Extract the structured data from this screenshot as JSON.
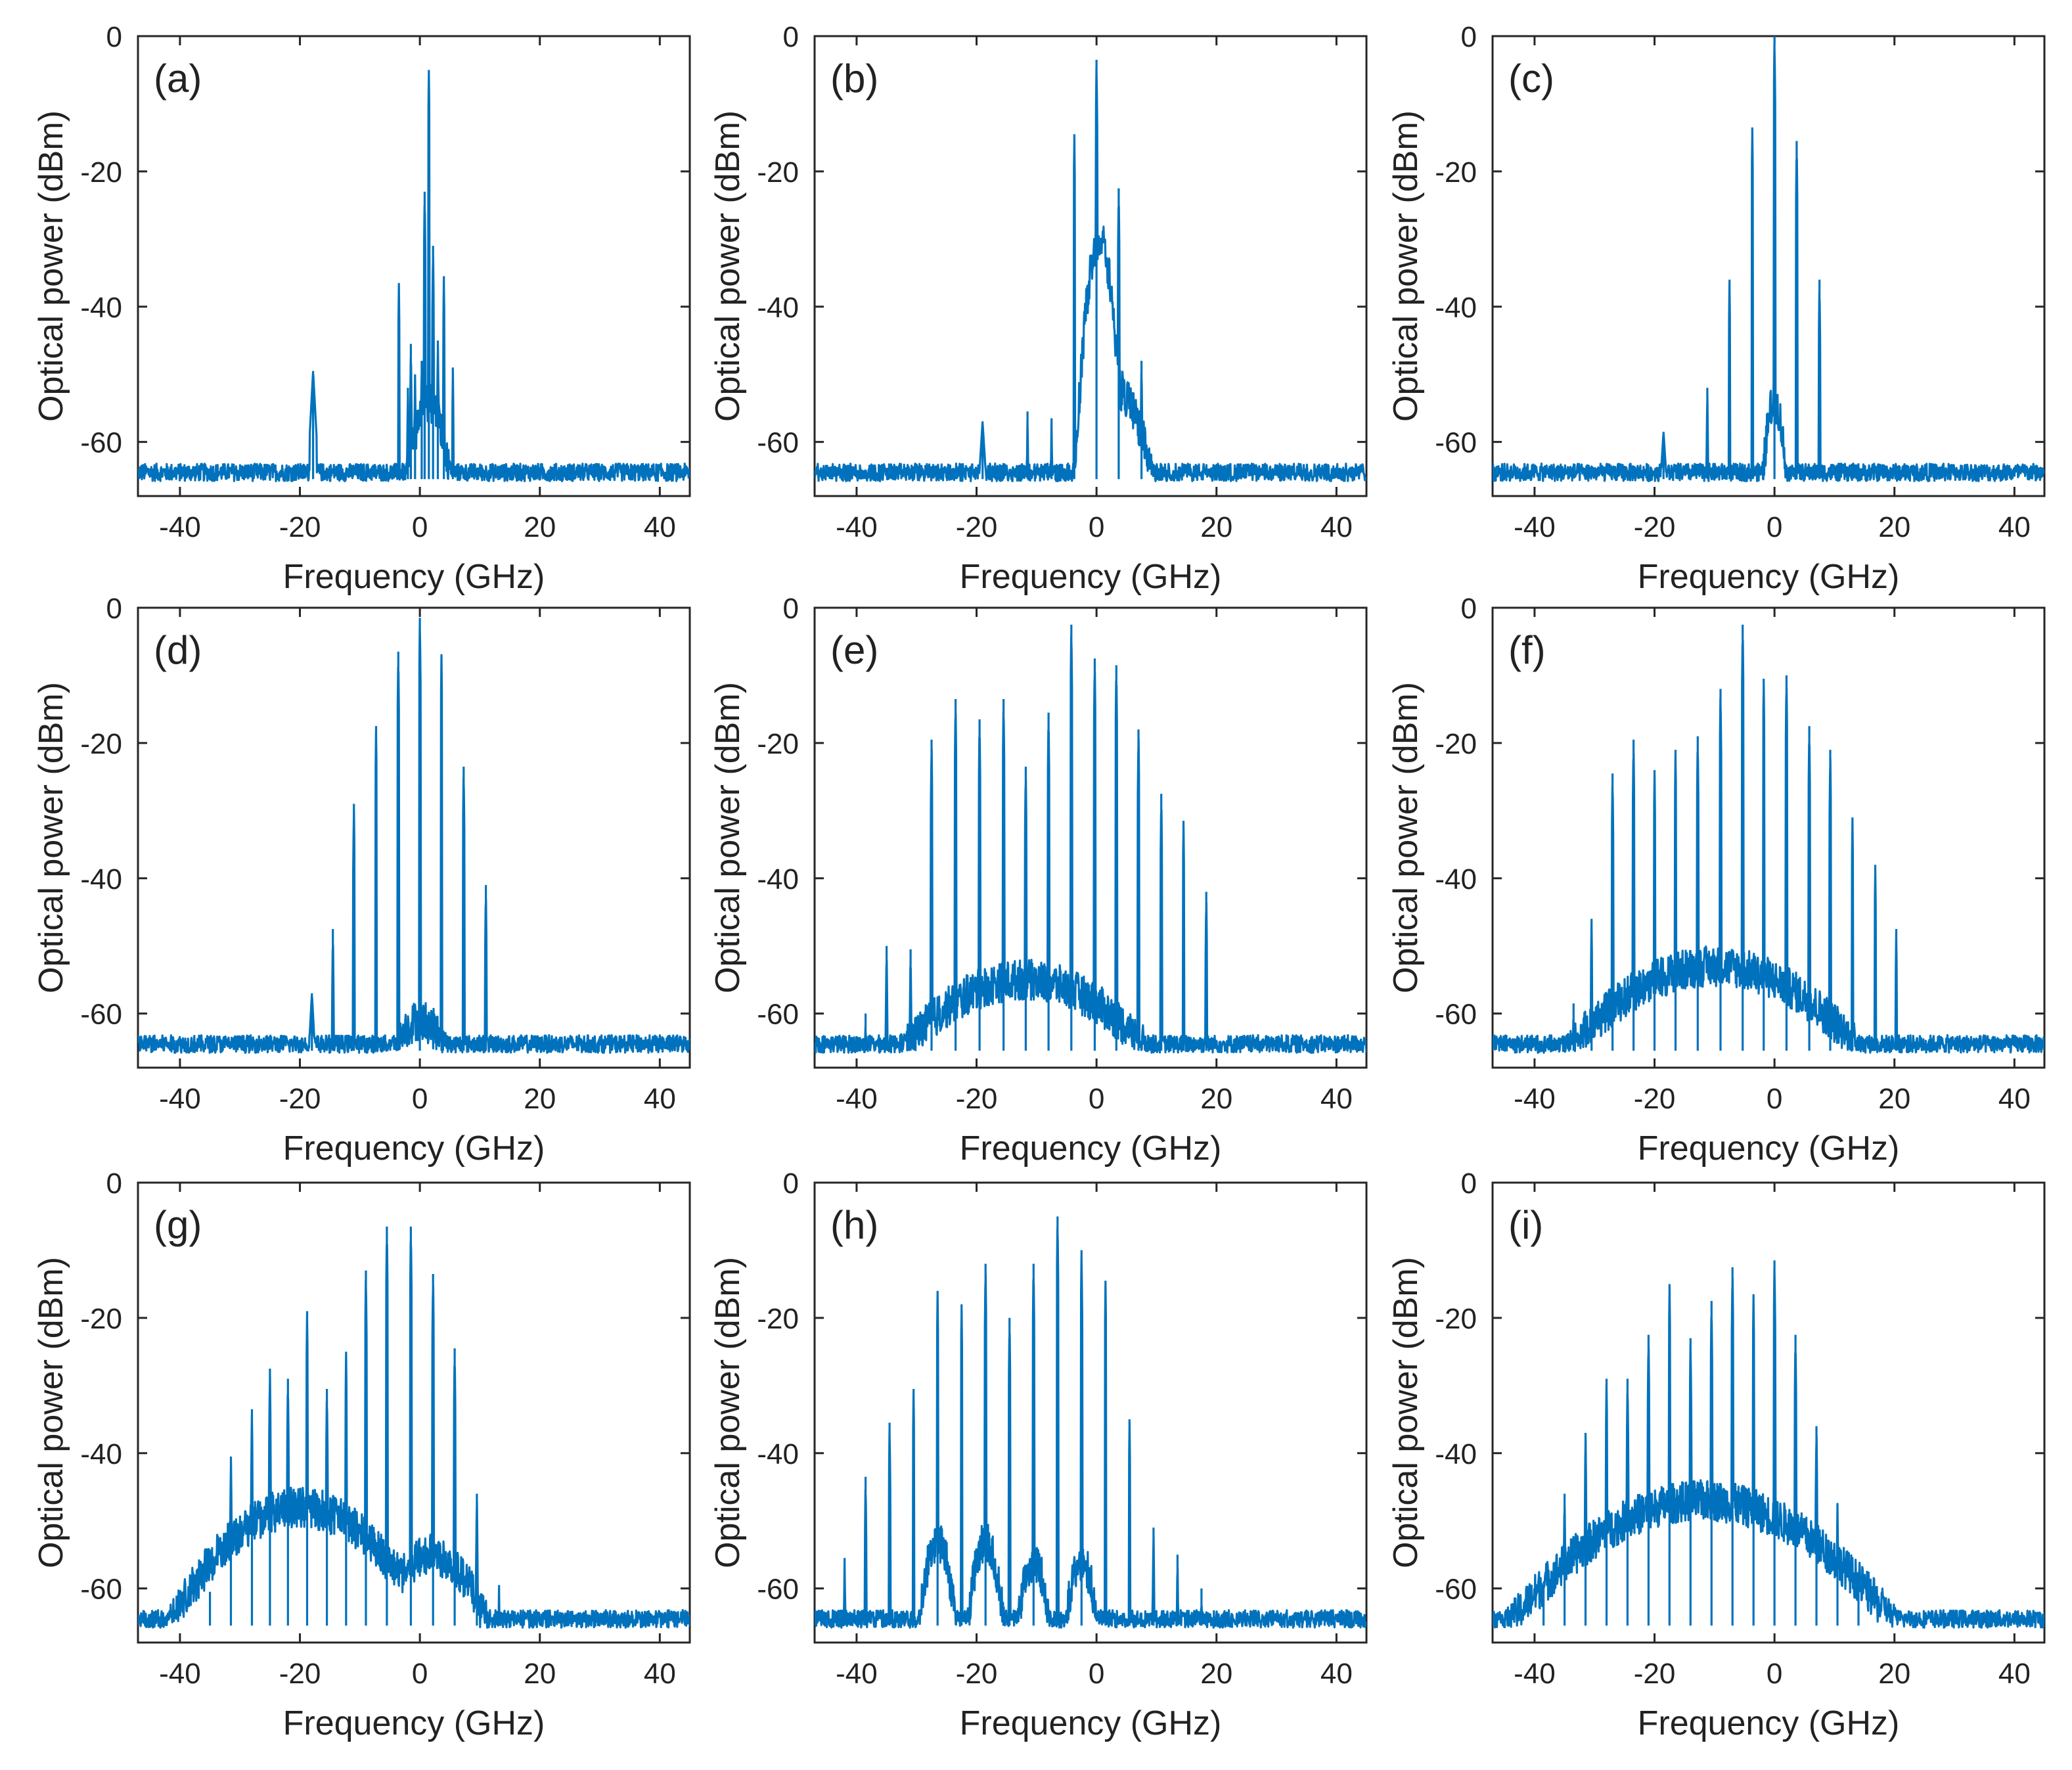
{
  "figure": {
    "line_color": "#0072BD",
    "axis_color": "#262626",
    "background": "#ffffff"
  },
  "chart_data": [
    {
      "type": "line",
      "panel": "(a)",
      "xlabel": "Frequency (GHz)",
      "ylabel": "Optical power (dBm)",
      "xlim": [
        -47,
        45
      ],
      "ylim": [
        -68,
        0
      ],
      "xticks": [
        "-40",
        "-20",
        "0",
        "20",
        "40"
      ],
      "yticks": [
        "0",
        "-20",
        "-40",
        "-60"
      ],
      "noise_floor": -64.5,
      "peaks": [
        {
          "x": -17.8,
          "y": -49.5,
          "w": 0.6
        },
        {
          "x": -3.5,
          "y": -36.5
        },
        {
          "x": -2.0,
          "y": -52.0
        },
        {
          "x": -1.5,
          "y": -45.5
        },
        {
          "x": -0.8,
          "y": -50.0
        },
        {
          "x": 0.3,
          "y": -48.0
        },
        {
          "x": 0.8,
          "y": -23.0
        },
        {
          "x": 1.5,
          "y": -5.0
        },
        {
          "x": 2.2,
          "y": -31.0
        },
        {
          "x": 3.0,
          "y": -45.0
        },
        {
          "x": 4.0,
          "y": -35.5
        },
        {
          "x": 5.5,
          "y": -49.0
        }
      ],
      "humps": [
        {
          "x": 1.5,
          "y": -54,
          "w": 1.8
        }
      ]
    },
    {
      "type": "line",
      "panel": "(b)",
      "xlabel": "Frequency (GHz)",
      "ylabel": "Optical power (dBm)",
      "xlim": [
        -47,
        45
      ],
      "ylim": [
        -68,
        0
      ],
      "xticks": [
        "-40",
        "-20",
        "0",
        "20",
        "40"
      ],
      "yticks": [
        "0",
        "-20",
        "-40",
        "-60"
      ],
      "noise_floor": -64.5,
      "peaks": [
        {
          "x": -19.0,
          "y": -57.0,
          "w": 0.7
        },
        {
          "x": -11.5,
          "y": -55.5
        },
        {
          "x": -7.5,
          "y": -56.5
        },
        {
          "x": -3.7,
          "y": -14.5
        },
        {
          "x": 0.0,
          "y": -3.5
        },
        {
          "x": 3.7,
          "y": -22.5
        },
        {
          "x": 7.5,
          "y": -48.0
        }
      ],
      "humps": [
        {
          "x": 0.5,
          "y": -30,
          "w": 1.2
        },
        {
          "x": 3.0,
          "y": -52,
          "w": 3.0
        }
      ]
    },
    {
      "type": "line",
      "panel": "(c)",
      "xlabel": "Frequency (GHz)",
      "ylabel": "Optical power (dBm)",
      "xlim": [
        -47,
        45
      ],
      "ylim": [
        -68,
        0
      ],
      "xticks": [
        "-40",
        "-20",
        "0",
        "20",
        "40"
      ],
      "yticks": [
        "0",
        "-20",
        "-40",
        "-60"
      ],
      "noise_floor": -64.5,
      "peaks": [
        {
          "x": -18.5,
          "y": -58.5,
          "w": 0.7
        },
        {
          "x": -11.2,
          "y": -52.0
        },
        {
          "x": -7.5,
          "y": -36.0
        },
        {
          "x": -3.7,
          "y": -13.5
        },
        {
          "x": 0.0,
          "y": 0.0
        },
        {
          "x": 3.7,
          "y": -15.5
        },
        {
          "x": 7.5,
          "y": -36.0
        }
      ],
      "humps": [
        {
          "x": 0.0,
          "y": -54,
          "w": 1.0
        }
      ]
    },
    {
      "type": "line",
      "panel": "(d)",
      "xlabel": "Frequency (GHz)",
      "ylabel": "Optical power (dBm)",
      "xlim": [
        -47,
        45
      ],
      "ylim": [
        -68,
        0
      ],
      "xticks": [
        "-40",
        "-20",
        "0",
        "20",
        "40"
      ],
      "yticks": [
        "0",
        "-20",
        "-40",
        "-60"
      ],
      "noise_floor": -64.5,
      "peaks": [
        {
          "x": -18.0,
          "y": -57.0,
          "w": 0.6
        },
        {
          "x": -14.5,
          "y": -47.5
        },
        {
          "x": -11.0,
          "y": -29.0
        },
        {
          "x": -7.3,
          "y": -17.5
        },
        {
          "x": -3.6,
          "y": -6.5
        },
        {
          "x": 0.0,
          "y": -1.5
        },
        {
          "x": 3.6,
          "y": -7.0
        },
        {
          "x": 7.3,
          "y": -23.5
        },
        {
          "x": 11.0,
          "y": -41.0
        }
      ],
      "humps": [
        {
          "x": 0.0,
          "y": -61,
          "w": 3.5
        }
      ]
    },
    {
      "type": "line",
      "panel": "(e)",
      "xlabel": "Frequency (GHz)",
      "ylabel": "Optical power (dBm)",
      "xlim": [
        -47,
        45
      ],
      "ylim": [
        -68,
        0
      ],
      "xticks": [
        "-40",
        "-20",
        "0",
        "20",
        "40"
      ],
      "yticks": [
        "0",
        "-20",
        "-40",
        "-60"
      ],
      "noise_floor": -64.5,
      "peaks": [
        {
          "x": -38.5,
          "y": -60.0
        },
        {
          "x": -35.0,
          "y": -50.0
        },
        {
          "x": -31.0,
          "y": -50.5
        },
        {
          "x": -27.5,
          "y": -19.5
        },
        {
          "x": -23.5,
          "y": -13.5
        },
        {
          "x": -19.5,
          "y": -16.5
        },
        {
          "x": -15.5,
          "y": -13.5
        },
        {
          "x": -11.8,
          "y": -23.5
        },
        {
          "x": -8.0,
          "y": -15.5
        },
        {
          "x": -4.2,
          "y": -2.5
        },
        {
          "x": -0.3,
          "y": -7.5
        },
        {
          "x": 3.3,
          "y": -8.5
        },
        {
          "x": 7.0,
          "y": -18.0
        },
        {
          "x": 10.8,
          "y": -27.5
        },
        {
          "x": 14.5,
          "y": -31.5
        },
        {
          "x": 18.3,
          "y": -42.0
        }
      ],
      "humps": [
        {
          "x": -12.0,
          "y": -55,
          "w": 11.0
        }
      ]
    },
    {
      "type": "line",
      "panel": "(f)",
      "xlabel": "Frequency (GHz)",
      "ylabel": "Optical power (dBm)",
      "xlim": [
        -47,
        45
      ],
      "ylim": [
        -68,
        0
      ],
      "xticks": [
        "-40",
        "-20",
        "0",
        "20",
        "40"
      ],
      "yticks": [
        "0",
        "-20",
        "-40",
        "-60"
      ],
      "noise_floor": -64.5,
      "peaks": [
        {
          "x": -33.5,
          "y": -58.5
        },
        {
          "x": -30.5,
          "y": -46.0
        },
        {
          "x": -27.0,
          "y": -24.5
        },
        {
          "x": -23.5,
          "y": -19.5
        },
        {
          "x": -20.0,
          "y": -24.0
        },
        {
          "x": -16.5,
          "y": -21.0
        },
        {
          "x": -12.8,
          "y": -19.0
        },
        {
          "x": -9.0,
          "y": -12.0
        },
        {
          "x": -5.3,
          "y": -2.5
        },
        {
          "x": -1.8,
          "y": -10.5
        },
        {
          "x": 2.0,
          "y": -10.0
        },
        {
          "x": 5.8,
          "y": -17.5
        },
        {
          "x": 9.3,
          "y": -21.0
        },
        {
          "x": 13.0,
          "y": -31.0
        },
        {
          "x": 16.8,
          "y": -38.0
        },
        {
          "x": 20.3,
          "y": -47.5
        }
      ],
      "humps": [
        {
          "x": -10.0,
          "y": -53,
          "w": 12.0
        }
      ]
    },
    {
      "type": "line",
      "panel": "(g)",
      "xlabel": "Frequency (GHz)",
      "ylabel": "Optical power (dBm)",
      "xlim": [
        -47,
        45
      ],
      "ylim": [
        -68,
        0
      ],
      "xticks": [
        "-40",
        "-20",
        "0",
        "20",
        "40"
      ],
      "yticks": [
        "0",
        "-20",
        "-40",
        "-60"
      ],
      "noise_floor": -64.5,
      "peaks": [
        {
          "x": -35.0,
          "y": -60.5
        },
        {
          "x": -31.5,
          "y": -40.5
        },
        {
          "x": -28.0,
          "y": -33.5
        },
        {
          "x": -25.0,
          "y": -27.5
        },
        {
          "x": -22.0,
          "y": -29.0
        },
        {
          "x": -18.8,
          "y": -19.0
        },
        {
          "x": -15.5,
          "y": -30.5
        },
        {
          "x": -12.3,
          "y": -25.0
        },
        {
          "x": -9.0,
          "y": -13.0
        },
        {
          "x": -5.5,
          "y": -6.5
        },
        {
          "x": -1.5,
          "y": -6.5
        },
        {
          "x": 2.2,
          "y": -13.5
        },
        {
          "x": 5.8,
          "y": -24.5
        },
        {
          "x": 9.5,
          "y": -46.0
        },
        {
          "x": 13.2,
          "y": -59.5
        },
        {
          "x": 16.8,
          "y": -63.5
        }
      ],
      "humps": [
        {
          "x": -20.0,
          "y": -48,
          "w": 9.0
        },
        {
          "x": 2.0,
          "y": -55,
          "w": 5.0
        }
      ]
    },
    {
      "type": "line",
      "panel": "(h)",
      "xlabel": "Frequency (GHz)",
      "ylabel": "Optical power (dBm)",
      "xlim": [
        -47,
        45
      ],
      "ylim": [
        -68,
        0
      ],
      "xticks": [
        "-40",
        "-20",
        "0",
        "20",
        "40"
      ],
      "yticks": [
        "0",
        "-20",
        "-40",
        "-60"
      ],
      "noise_floor": -64.5,
      "peaks": [
        {
          "x": -42.0,
          "y": -55.5
        },
        {
          "x": -38.5,
          "y": -43.5
        },
        {
          "x": -34.5,
          "y": -35.5
        },
        {
          "x": -30.5,
          "y": -30.5
        },
        {
          "x": -26.5,
          "y": -16.0
        },
        {
          "x": -22.5,
          "y": -18.0
        },
        {
          "x": -18.5,
          "y": -12.0
        },
        {
          "x": -14.5,
          "y": -20.0
        },
        {
          "x": -10.5,
          "y": -12.0
        },
        {
          "x": -6.5,
          "y": -5.0
        },
        {
          "x": -2.5,
          "y": -10.0
        },
        {
          "x": 1.5,
          "y": -14.5
        },
        {
          "x": 5.5,
          "y": -35.0
        },
        {
          "x": 9.5,
          "y": -51.0
        },
        {
          "x": 13.5,
          "y": -55.0
        },
        {
          "x": 17.5,
          "y": -60.0
        }
      ],
      "humps": [
        {
          "x": -26.5,
          "y": -53,
          "w": 1.5
        },
        {
          "x": -18.5,
          "y": -53,
          "w": 1.5
        },
        {
          "x": -10.5,
          "y": -56,
          "w": 1.5
        },
        {
          "x": -2.5,
          "y": -56,
          "w": 1.5
        }
      ]
    },
    {
      "type": "line",
      "panel": "(i)",
      "xlabel": "Frequency (GHz)",
      "ylabel": "Optical power (dBm)",
      "xlim": [
        -47,
        45
      ],
      "ylim": [
        -68,
        0
      ],
      "xticks": [
        "-40",
        "-20",
        "0",
        "20",
        "40"
      ],
      "yticks": [
        "0",
        "-20",
        "-40",
        "-60"
      ],
      "noise_floor": -64.5,
      "peaks": [
        {
          "x": -38.5,
          "y": -59.5
        },
        {
          "x": -35.0,
          "y": -46.0
        },
        {
          "x": -31.5,
          "y": -37.0
        },
        {
          "x": -28.0,
          "y": -29.0
        },
        {
          "x": -24.5,
          "y": -29.0
        },
        {
          "x": -21.0,
          "y": -22.5
        },
        {
          "x": -17.5,
          "y": -15.0
        },
        {
          "x": -14.0,
          "y": -23.0
        },
        {
          "x": -10.5,
          "y": -17.5
        },
        {
          "x": -7.0,
          "y": -12.5
        },
        {
          "x": -3.5,
          "y": -16.5
        },
        {
          "x": 0.0,
          "y": -11.5
        },
        {
          "x": 3.5,
          "y": -22.5
        },
        {
          "x": 7.0,
          "y": -36.0
        },
        {
          "x": 10.5,
          "y": -47.5
        },
        {
          "x": 14.0,
          "y": -59.0
        }
      ],
      "humps": [
        {
          "x": -12.0,
          "y": -47,
          "w": 13.0
        }
      ]
    }
  ]
}
